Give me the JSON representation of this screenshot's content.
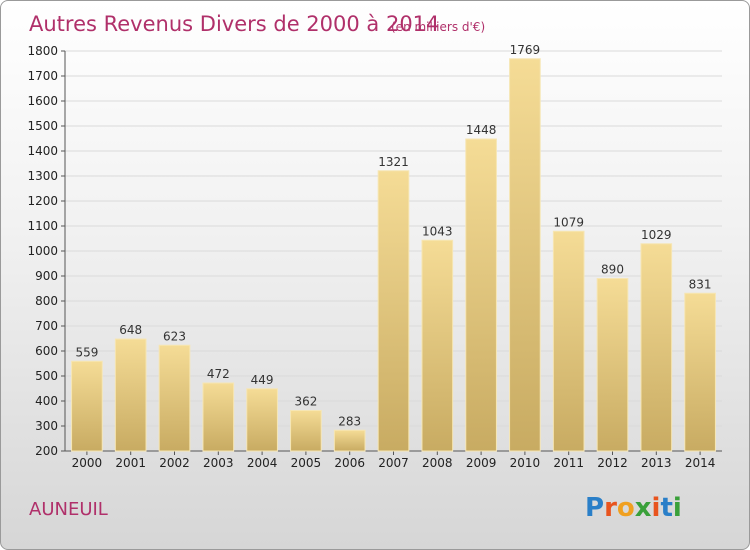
{
  "chart_data": {
    "type": "bar",
    "title": "Autres Revenus Divers de 2000 à 2014",
    "subtitle": "(en milliers d'€)",
    "categories": [
      "2000",
      "2001",
      "2002",
      "2003",
      "2004",
      "2005",
      "2006",
      "2007",
      "2008",
      "2009",
      "2010",
      "2011",
      "2012",
      "2013",
      "2014"
    ],
    "values": [
      559,
      648,
      623,
      472,
      449,
      362,
      283,
      1321,
      1043,
      1448,
      1769,
      1079,
      890,
      1029,
      831
    ],
    "ylim": [
      200,
      1800
    ],
    "yticks": [
      200,
      300,
      400,
      500,
      600,
      700,
      800,
      900,
      1000,
      1100,
      1200,
      1300,
      1400,
      1500,
      1600,
      1700,
      1800
    ],
    "grid": true,
    "bar_color_top": "#f5dc96",
    "bar_color_bottom": "#c8ab62"
  },
  "place_label": "AUNEUIL",
  "logo": {
    "text": "Proxiti",
    "letter_colors": [
      "#2a7fc8",
      "#e8541e",
      "#f0a020",
      "#3aa03a",
      "#e8541e",
      "#2a7fc8",
      "#3aa03a"
    ]
  }
}
